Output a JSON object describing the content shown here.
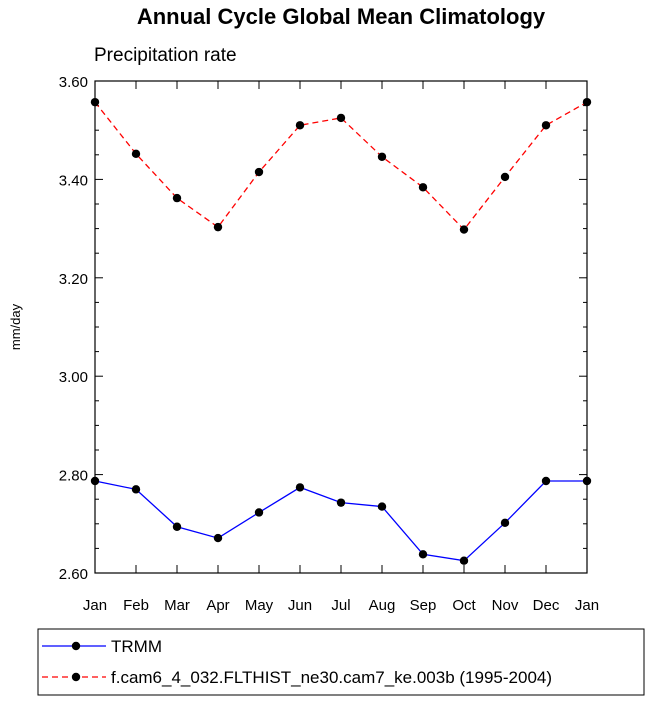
{
  "chart_data": {
    "type": "line",
    "title": "Annual Cycle Global Mean Climatology",
    "subtitle": "Precipitation rate",
    "xlabel": "",
    "ylabel": "mm/day",
    "categories": [
      "Jan",
      "Feb",
      "Mar",
      "Apr",
      "May",
      "Jun",
      "Jul",
      "Aug",
      "Sep",
      "Oct",
      "Nov",
      "Dec",
      "Jan"
    ],
    "ylim": [
      2.6,
      3.6
    ],
    "yticks": [
      2.6,
      2.8,
      3.0,
      3.2,
      3.4,
      3.6
    ],
    "ytick_labels": [
      "2.60",
      "2.80",
      "3.00",
      "3.20",
      "3.40",
      "3.60"
    ],
    "grid": false,
    "legend_position": "bottom",
    "series": [
      {
        "name": "TRMM",
        "color": "#0000ff",
        "dash": "solid",
        "marker": "circle",
        "values": [
          2.787,
          2.77,
          2.694,
          2.671,
          2.723,
          2.774,
          2.743,
          2.735,
          2.638,
          2.625,
          2.702,
          2.787,
          2.787
        ]
      },
      {
        "name": "f.cam6_4_032.FLTHIST_ne30.cam7_ke.003b (1995-2004)",
        "color": "#ff0000",
        "dash": "dashed",
        "marker": "circle",
        "values": [
          3.557,
          3.452,
          3.362,
          3.303,
          3.415,
          3.51,
          3.525,
          3.446,
          3.384,
          3.298,
          3.405,
          3.51,
          3.557
        ]
      }
    ]
  }
}
